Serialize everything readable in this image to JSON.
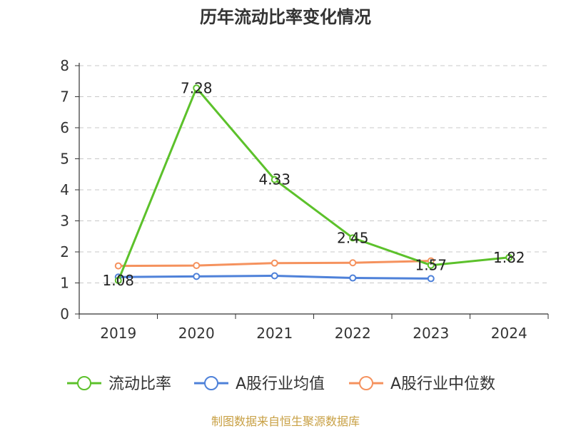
{
  "chart_data": {
    "type": "line",
    "title": "历年流动比率变化情况",
    "categories": [
      "2019",
      "2020",
      "2021",
      "2022",
      "2023",
      "2024"
    ],
    "ylim": [
      0,
      8
    ],
    "yticks": [
      0,
      1,
      2,
      3,
      4,
      5,
      6,
      7,
      8
    ],
    "grid": true,
    "legend_position": "bottom",
    "series": [
      {
        "name": "流动比率",
        "color": "#5cc12b",
        "values": [
          1.08,
          7.28,
          4.33,
          2.45,
          1.57,
          1.82
        ],
        "labels": [
          "1.08",
          "7.28",
          "4.33",
          "2.45",
          "1.57",
          "1.82"
        ]
      },
      {
        "name": "A股行业均值",
        "color": "#4e81d9",
        "values": [
          1.19,
          1.21,
          1.23,
          1.16,
          1.14,
          null
        ]
      },
      {
        "name": "A股行业中位数",
        "color": "#f5925e",
        "values": [
          1.55,
          1.56,
          1.64,
          1.65,
          1.71,
          null
        ]
      }
    ],
    "source": "制图数据来自恒生聚源数据库"
  }
}
